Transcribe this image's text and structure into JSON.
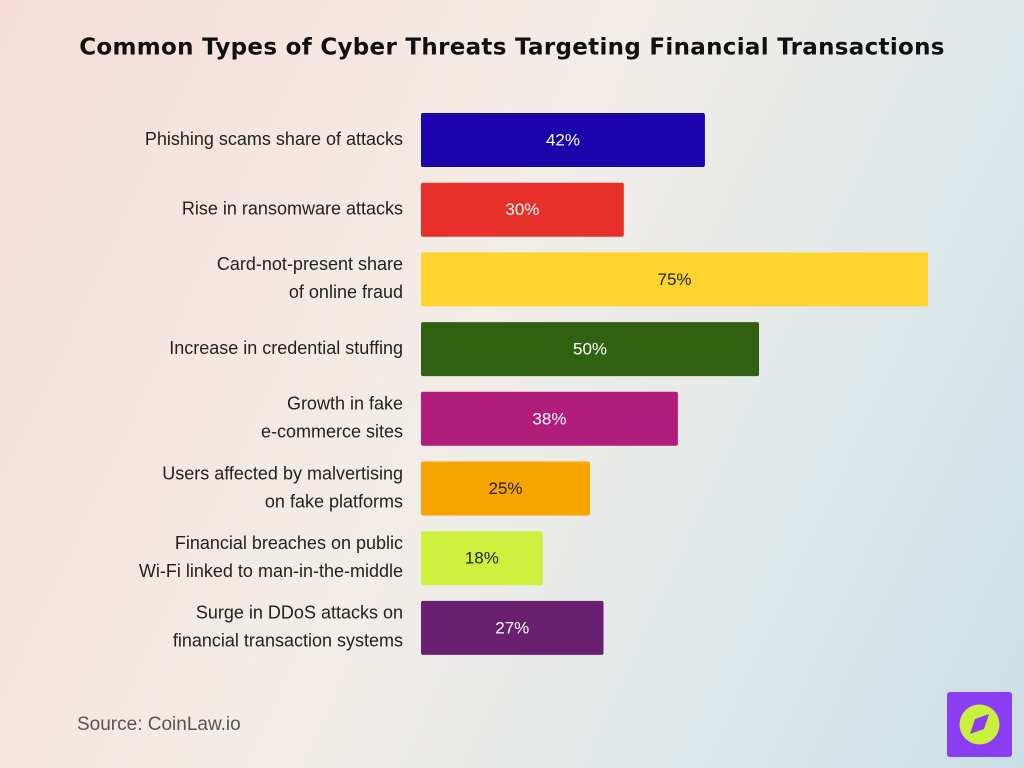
{
  "chart_data": {
    "type": "bar",
    "orientation": "horizontal",
    "title": "Common Types of Cyber Threats Targeting Financial Transactions",
    "categories": [
      [
        "Phishing scams share of attacks"
      ],
      [
        "Rise in ransomware attacks"
      ],
      [
        "Card-not-present share",
        "of online fraud"
      ],
      [
        "Increase in credential stuffing"
      ],
      [
        "Growth in fake",
        "e-commerce sites"
      ],
      [
        "Users affected by malvertising",
        "on fake platforms"
      ],
      [
        "Financial breaches on public",
        "Wi-Fi linked to man-in-the-middle"
      ],
      [
        "Surge in DDoS attacks on",
        "financial transaction systems"
      ]
    ],
    "values": [
      42,
      30,
      75,
      50,
      38,
      25,
      18,
      27
    ],
    "value_labels": [
      "42%",
      "30%",
      "75%",
      "50%",
      "38%",
      "25%",
      "18%",
      "27%"
    ],
    "colors": [
      "#1c04ad",
      "#e8302a",
      "#ffd42e",
      "#2f6111",
      "#b01d7a",
      "#f7a400",
      "#cff03e",
      "#6a2070"
    ],
    "source": "Source: CoinLaw.io"
  }
}
